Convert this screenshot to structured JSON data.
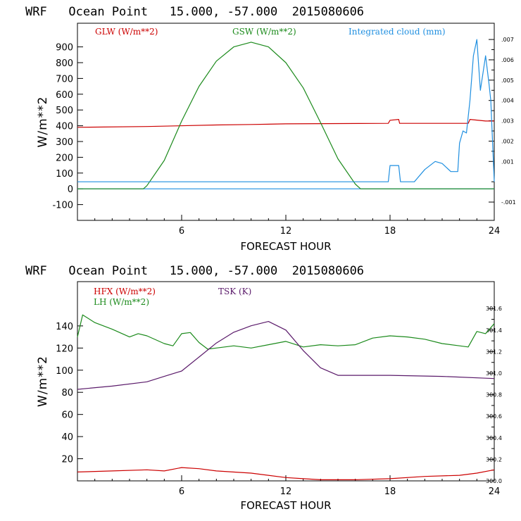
{
  "chart_data": [
    {
      "type": "line",
      "title": "WRF   Ocean Point   15.000, -57.000  2015080606",
      "xlabel": "FORECAST HOUR",
      "ylabel": "W/m**2",
      "xlim": [
        0,
        24
      ],
      "ylim": [
        -200,
        1050
      ],
      "x_ticks": [
        6,
        12,
        18,
        24
      ],
      "x_tick_labels": [
        "6",
        "12",
        "18",
        "24"
      ],
      "y_ticks": [
        -100,
        0,
        100,
        200,
        300,
        400,
        500,
        600,
        700,
        800,
        900
      ],
      "y_tick_labels": [
        "-100",
        "0",
        "100",
        "200",
        "300",
        "400",
        "500",
        "600",
        "700",
        "800",
        "900"
      ],
      "right_axis": {
        "label": "Integrated cloud (mm)",
        "ylim": [
          -0.0019,
          0.0078
        ],
        "ticks": [
          -0.001,
          0.001,
          0.002,
          0.003,
          0.004,
          0.005,
          0.006,
          0.007
        ],
        "tick_labels": [
          "-.001",
          ".001",
          ".002",
          ".003",
          ".004",
          ".005",
          ".006",
          ".007"
        ]
      },
      "zero_line": {
        "name": "zero",
        "y": 0,
        "color": "#1f8fe0"
      },
      "series": [
        {
          "name": "GLW (W/m**2)",
          "color": "#cc0000",
          "axis": "left",
          "x": [
            0,
            4,
            8,
            10,
            12,
            17.9,
            18.0,
            18.5,
            18.55,
            22.5,
            22.6,
            23.5,
            24
          ],
          "y": [
            390,
            395,
            405,
            408,
            412,
            415,
            435,
            440,
            415,
            415,
            440,
            430,
            430
          ]
        },
        {
          "name": "GSW (W/m**2)",
          "color": "#1b8a1b",
          "axis": "left",
          "x": [
            0,
            3.8,
            4,
            5,
            6,
            7,
            8,
            9,
            10,
            11,
            12,
            13,
            14,
            15,
            16,
            16.3,
            24
          ],
          "y": [
            0,
            0,
            20,
            180,
            430,
            650,
            810,
            900,
            930,
            900,
            800,
            640,
            420,
            190,
            30,
            0,
            0
          ]
        },
        {
          "name": "Integrated cloud (mm)",
          "color": "#1f8fe0",
          "axis": "right",
          "x": [
            0,
            17.9,
            18.0,
            18.3,
            18.5,
            18.6,
            19.4,
            20.0,
            20.6,
            21.0,
            21.5,
            21.9,
            22.0,
            22.2,
            22.4,
            22.6,
            22.8,
            23.0,
            23.2,
            23.5,
            23.7,
            23.8,
            24
          ],
          "y": [
            0,
            0,
            0.0008,
            0.0008,
            0.0008,
            0,
            0,
            0.0006,
            0.001,
            0.0009,
            0.0005,
            0.0005,
            0.0019,
            0.0025,
            0.0024,
            0.004,
            0.0062,
            0.007,
            0.0045,
            0.0062,
            0.0048,
            0.004,
            0
          ]
        }
      ]
    },
    {
      "type": "line",
      "title": "WRF   Ocean Point   15.000, -57.000  2015080606",
      "xlabel": "FORECAST HOUR",
      "ylabel": "W/m**2",
      "xlim": [
        0,
        24
      ],
      "ylim": [
        0,
        180
      ],
      "x_ticks": [
        6,
        12,
        18,
        24
      ],
      "x_tick_labels": [
        "6",
        "12",
        "18",
        "24"
      ],
      "y_ticks": [
        20,
        40,
        60,
        80,
        100,
        120,
        140
      ],
      "y_tick_labels": [
        "20",
        "40",
        "60",
        "80",
        "100",
        "120",
        "140"
      ],
      "right_axis": {
        "label": "TSK (K)",
        "ylim": [
          300.0,
          301.85
        ],
        "ticks": [
          300.0,
          300.2,
          300.4,
          300.6,
          300.8,
          301.0,
          301.2,
          301.4,
          301.6
        ],
        "tick_labels": [
          "300.0",
          "300.2",
          "300.4",
          "300.6",
          "300.8",
          "301.0",
          "301.2",
          "301.4",
          "301.6"
        ]
      },
      "series": [
        {
          "name": "HFX (W/m**2)",
          "color": "#cc0000",
          "axis": "left",
          "x": [
            0,
            2,
            4,
            5,
            6,
            7,
            8,
            10,
            12,
            13,
            14,
            16,
            18,
            20,
            22,
            23,
            24
          ],
          "y": [
            8,
            9,
            10,
            9,
            12,
            11,
            9,
            7,
            3,
            2,
            1,
            1,
            2,
            4,
            5,
            7,
            10
          ]
        },
        {
          "name": "LH (W/m**2)",
          "color": "#1b8a1b",
          "axis": "left",
          "x": [
            0,
            0.3,
            1,
            2,
            3,
            3.5,
            4,
            5,
            5.5,
            6,
            6.5,
            7,
            7.5,
            8,
            9,
            10,
            11,
            12,
            13,
            14,
            15,
            16,
            17,
            18,
            19,
            20,
            21,
            22,
            22.5,
            23,
            23.5,
            24
          ],
          "y": [
            130,
            150,
            143,
            137,
            130,
            133,
            131,
            124,
            122,
            133,
            134,
            125,
            119,
            120,
            122,
            120,
            123,
            126,
            121,
            123,
            122,
            123,
            129,
            131,
            130,
            128,
            124,
            122,
            121,
            135,
            133,
            142
          ]
        },
        {
          "name": "TSK (K)",
          "color": "#5a1a6a",
          "axis": "right",
          "x": [
            0,
            2,
            4,
            5,
            6,
            7,
            8,
            9,
            10,
            11,
            12,
            13,
            14,
            15,
            18,
            21,
            24
          ],
          "y": [
            300.85,
            300.88,
            300.92,
            300.97,
            301.02,
            301.15,
            301.28,
            301.38,
            301.44,
            301.48,
            301.4,
            301.21,
            301.05,
            300.98,
            300.98,
            300.97,
            300.95
          ]
        }
      ]
    }
  ]
}
